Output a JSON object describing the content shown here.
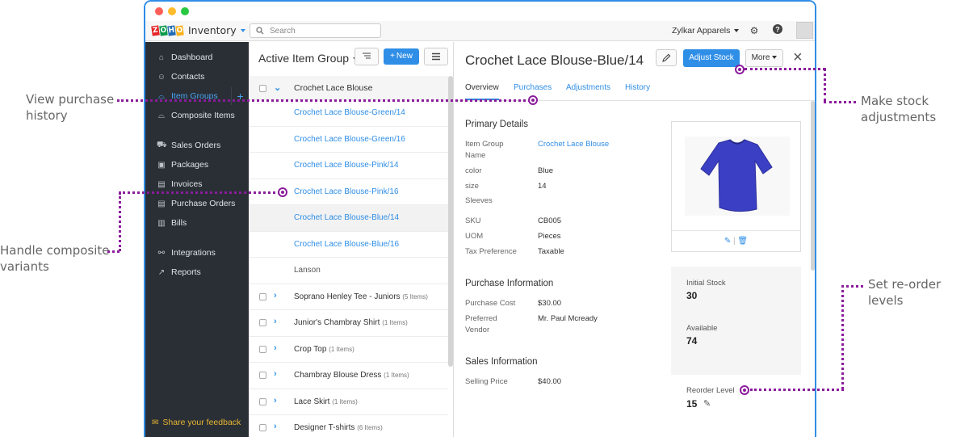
{
  "annotations": {
    "view_purchase": "View purchase\nhistory",
    "handle_composite": "Handle composite\nvariants",
    "make_stock": "Make stock\nadjustments",
    "reorder_levels": "Set re-order levels"
  },
  "topbar": {
    "logo_letters": [
      "Z",
      "O",
      "H",
      "O"
    ],
    "logo_colors": [
      "#e42527",
      "#089949",
      "#226db4",
      "#f9b21d"
    ],
    "product": "Inventory",
    "search_placeholder": "Search",
    "org": "Zylkar Apparels"
  },
  "sidebar": {
    "items": [
      {
        "label": "Dashboard",
        "icon": "home-icon"
      },
      {
        "label": "Contacts",
        "icon": "user-icon"
      },
      {
        "label": "Item Groups",
        "icon": "basket-icon"
      },
      {
        "label": "Composite Items",
        "icon": "basket-icon"
      },
      {
        "label": "Sales Orders",
        "icon": "cart-icon"
      },
      {
        "label": "Packages",
        "icon": "box-icon"
      },
      {
        "label": "Invoices",
        "icon": "document-icon"
      },
      {
        "label": "Purchase Orders",
        "icon": "document-icon"
      },
      {
        "label": "Bills",
        "icon": "bill-icon"
      },
      {
        "label": "Integrations",
        "icon": "plug-icon"
      },
      {
        "label": "Reports",
        "icon": "chart-icon"
      }
    ],
    "feedback": "Share your feedback"
  },
  "list": {
    "title": "Active Item Group",
    "new_label": "New",
    "group_name": "Crochet Lace Blouse",
    "variants": [
      "Crochet Lace Blouse-Green/14",
      "Crochet Lace Blouse-Green/16",
      "Crochet Lace Blouse-Pink/14",
      "Crochet Lace Blouse-Pink/16",
      "Crochet Lace Blouse-Blue/14",
      "Crochet Lace Blouse-Blue/16"
    ],
    "brand_row": "Lanson",
    "groups": [
      {
        "name": "Soprano Henley Tee - Juniors",
        "count": "(5 Items)"
      },
      {
        "name": "Junior's Chambray Shirt",
        "count": "(1 Items)"
      },
      {
        "name": "Crop Top",
        "count": "(1 Items)"
      },
      {
        "name": "Chambray Blouse Dress",
        "count": "(1 Items)"
      },
      {
        "name": "Lace Skirt",
        "count": "(1 Items)"
      },
      {
        "name": "Designer T-shirts",
        "count": "(6 Items)"
      }
    ]
  },
  "detail": {
    "title": "Crochet Lace Blouse-Blue/14",
    "adjust_label": "Adjust Stock",
    "more_label": "More",
    "tabs": [
      "Overview",
      "Purchases",
      "Adjustments",
      "History"
    ],
    "primary_heading": "Primary Details",
    "primary": [
      {
        "label": "Item Group\nName",
        "value": "Crochet Lace Blouse"
      },
      {
        "label": "color",
        "value": "Blue"
      },
      {
        "label": "size",
        "value": "14"
      },
      {
        "label": "Sleeves",
        "value": ""
      },
      {
        "label": "SKU",
        "value": "CB005"
      },
      {
        "label": "UOM",
        "value": "Pieces"
      },
      {
        "label": "Tax Preference",
        "value": "Taxable"
      }
    ],
    "purchase_heading": "Purchase Information",
    "purchase": [
      {
        "label": "Purchase Cost",
        "value": "$30.00"
      },
      {
        "label": "Preferred\nVendor",
        "value": "Mr. Paul Mcready"
      }
    ],
    "sales_heading": "Sales Information",
    "sales": [
      {
        "label": "Selling Price",
        "value": "$40.00"
      }
    ],
    "stock": {
      "initial_label": "Initial Stock",
      "initial_value": "30",
      "available_label": "Available",
      "available_value": "74",
      "reorder_label": "Reorder Level",
      "reorder_value": "15"
    },
    "product_color": "#3b3fc4"
  }
}
